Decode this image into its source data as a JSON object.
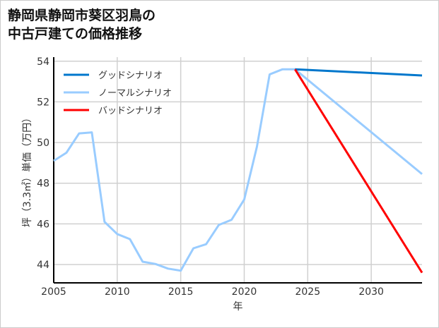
{
  "chart_data": {
    "type": "line",
    "title_lines": [
      "静岡県静岡市葵区羽鳥の",
      "中古戸建ての価格推移"
    ],
    "xlabel": "年",
    "ylabel": "坪（3.3㎡）単価（万円）",
    "xlim": [
      2005,
      2034
    ],
    "ylim": [
      43.1,
      54.2
    ],
    "xticks": [
      2005,
      2010,
      2015,
      2020,
      2025,
      2030
    ],
    "yticks": [
      44,
      46,
      48,
      50,
      52,
      54
    ],
    "grid": true,
    "legend_position": "top-left",
    "series": [
      {
        "name": "グッドシナリオ",
        "color": "#0077cc",
        "x": [
          2024,
          2034
        ],
        "y": [
          53.6,
          53.3
        ]
      },
      {
        "name": "ノーマルシナリオ",
        "color": "#99ccff",
        "x": [
          2005,
          2006,
          2007,
          2008,
          2009,
          2010,
          2011,
          2012,
          2013,
          2014,
          2015,
          2016,
          2017,
          2018,
          2019,
          2020,
          2021,
          2022,
          2023,
          2024,
          2034
        ],
        "y": [
          49.1,
          49.5,
          50.45,
          50.5,
          46.1,
          45.5,
          45.25,
          44.14,
          44.03,
          43.8,
          43.7,
          44.8,
          45.0,
          45.95,
          46.2,
          47.2,
          49.8,
          53.35,
          53.6,
          53.6,
          48.45
        ]
      },
      {
        "name": "バッドシナリオ",
        "color": "#ff0000",
        "x": [
          2024,
          2034
        ],
        "y": [
          53.6,
          43.6
        ]
      }
    ]
  }
}
